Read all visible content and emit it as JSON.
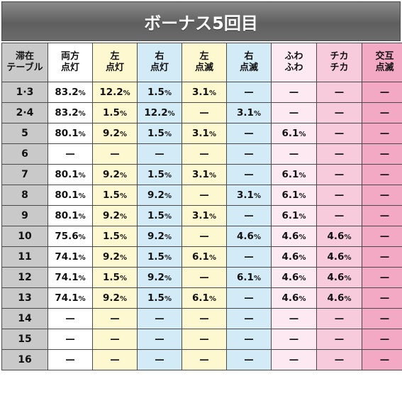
{
  "title": "ボーナス5回目",
  "headers": [
    "滞在\nテーブル",
    "両方\n点灯",
    "左\n点灯",
    "右\n点灯",
    "左\n点滅",
    "右\n点滅",
    "ふわ\nふわ",
    "チカ\nチカ",
    "交互\n点滅"
  ],
  "rows": [
    [
      "1·3",
      "83.2%",
      "12.2%",
      "1.5%",
      "3.1%",
      "—",
      "—",
      "—",
      "—"
    ],
    [
      "2·4",
      "83.2%",
      "1.5%",
      "12.2%",
      "—",
      "3.1%",
      "—",
      "—",
      "—"
    ],
    [
      "5",
      "80.1%",
      "9.2%",
      "1.5%",
      "3.1%",
      "—",
      "6.1%",
      "—",
      "—"
    ],
    [
      "6",
      "—",
      "—",
      "—",
      "—",
      "—",
      "—",
      "—",
      "—"
    ],
    [
      "7",
      "80.1%",
      "9.2%",
      "1.5%",
      "3.1%",
      "—",
      "6.1%",
      "—",
      "—"
    ],
    [
      "8",
      "80.1%",
      "1.5%",
      "9.2%",
      "—",
      "3.1%",
      "6.1%",
      "—",
      "—"
    ],
    [
      "9",
      "80.1%",
      "9.2%",
      "1.5%",
      "3.1%",
      "—",
      "6.1%",
      "—",
      "—"
    ],
    [
      "10",
      "75.6%",
      "1.5%",
      "9.2%",
      "—",
      "4.6%",
      "4.6%",
      "4.6%",
      "—"
    ],
    [
      "11",
      "74.1%",
      "9.2%",
      "1.5%",
      "6.1%",
      "—",
      "4.6%",
      "4.6%",
      "—"
    ],
    [
      "12",
      "74.1%",
      "1.5%",
      "9.2%",
      "—",
      "6.1%",
      "4.6%",
      "4.6%",
      "—"
    ],
    [
      "13",
      "74.1%",
      "9.2%",
      "1.5%",
      "6.1%",
      "—",
      "4.6%",
      "4.6%",
      "—"
    ],
    [
      "14",
      "—",
      "—",
      "—",
      "—",
      "—",
      "—",
      "—",
      "—"
    ],
    [
      "15",
      "—",
      "—",
      "—",
      "—",
      "—",
      "—",
      "—",
      "—"
    ],
    [
      "16",
      "—",
      "—",
      "—",
      "—",
      "—",
      "—",
      "—",
      "—"
    ]
  ]
}
